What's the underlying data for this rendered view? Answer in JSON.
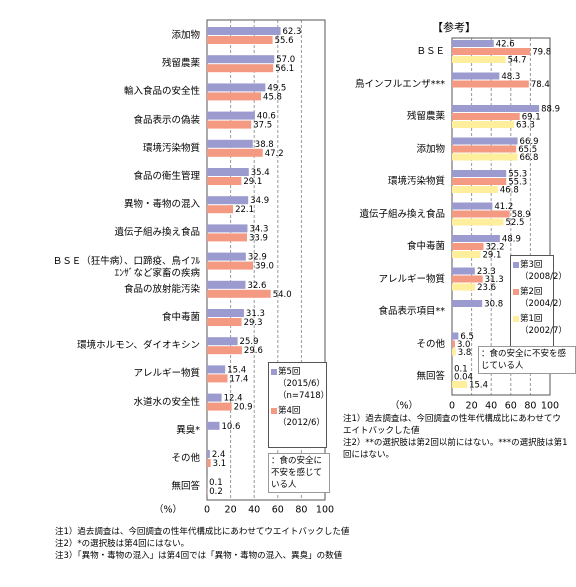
{
  "chart_data": [
    {
      "type": "bar",
      "orientation": "horizontal",
      "categories": [
        "添加物",
        "残留農薬",
        "輸入食品の安全性",
        "食品表示の偽装",
        "環境汚染物質",
        "食品の衛生管理",
        "異物・毒物の混入",
        "遺伝子組み換え食品",
        "ＢＳＥ（狂牛病）、口蹄疫、鳥イﾌﾙｴﾝｻﾞなど家畜の疾病",
        "食品の放射能汚染",
        "食中毒菌",
        "環境ホルモン、ダイオキシン",
        "アレルギー物質",
        "水道水の安全性",
        "異臭*",
        "その他",
        "無回答"
      ],
      "series": [
        {
          "name": "第5回",
          "period": "（2015/6）",
          "n": "（n=7418）",
          "color": "#9b9bd0",
          "values": [
            62.3,
            57.0,
            49.5,
            40.6,
            38.8,
            35.4,
            34.9,
            34.3,
            32.9,
            32.6,
            31.3,
            25.9,
            15.4,
            12.4,
            10.6,
            2.4,
            0.1
          ],
          "value_labels": [
            "62.3",
            "57.0",
            "49.5",
            "40.6",
            "38.8",
            "35.4",
            "34.9",
            "34.3",
            "32.9",
            "32.6",
            "31.3",
            "25.9",
            "15.4",
            "12.4",
            "10.6",
            "2.4",
            "0.1"
          ]
        },
        {
          "name": "第4回",
          "period": "（2012/6）",
          "color": "#f59a82",
          "values": [
            55.6,
            56.1,
            45.8,
            37.5,
            47.2,
            29.1,
            22.1,
            33.9,
            39.0,
            54.0,
            29.3,
            29.6,
            17.4,
            20.9,
            null,
            3.1,
            0.2
          ],
          "value_labels": [
            "55.6",
            "56.1",
            "45.8",
            "37.5",
            "47.2",
            "29.1",
            "22.1",
            "33.9",
            "39.0",
            "54.0",
            "29.3",
            "29.6",
            "17.4",
            "20.9",
            null,
            "3.1",
            "0.2"
          ]
        }
      ],
      "xlim": [
        0,
        100
      ],
      "xticks": [
        0,
        20,
        40,
        60,
        80,
        100
      ],
      "x_label": "（%）",
      "annotation": "：食の安全に不安を感じている人",
      "notes": [
        "注1）過去調査は、今回調査の性年代構成比にあわせてウエイトバックした値",
        "注2）*の選択肢は第4回にはない。",
        "注3）「異物・毒物の混入」は第4回では「異物・毒物の混入、異臭」の数値"
      ]
    },
    {
      "type": "bar",
      "orientation": "horizontal",
      "title": "【参考】",
      "categories": [
        "ＢＳＥ",
        "鳥インフルエンザ***",
        "残留農薬",
        "添加物",
        "環境汚染物質",
        "遺伝子組み換え食品",
        "食中毒菌",
        "アレルギー物質",
        "食品表示項目**",
        "その他",
        "無回答"
      ],
      "series": [
        {
          "name": "第3回",
          "period": "（2008/2）",
          "color": "#9b9bd0",
          "values": [
            42.6,
            48.3,
            88.9,
            66.9,
            55.3,
            41.2,
            48.9,
            23.3,
            30.8,
            6.5,
            0.1
          ],
          "value_labels": [
            "42.6",
            "48.3",
            "88.9",
            "66.9",
            "55.3",
            "41.2",
            "48.9",
            "23.3",
            "30.8",
            "6.5",
            "0.1"
          ]
        },
        {
          "name": "第2回",
          "period": "（2004/2）",
          "color": "#f59a82",
          "values": [
            79.8,
            78.4,
            69.1,
            65.5,
            55.3,
            58.9,
            32.2,
            31.3,
            null,
            3.0,
            0.04
          ],
          "value_labels": [
            "79.8",
            "78.4",
            "69.1",
            "65.5",
            "55.3",
            "58.9",
            "32.2",
            "31.3",
            null,
            "3.0",
            "0.04"
          ]
        },
        {
          "name": "第1回",
          "period": "（2002/7）",
          "color": "#ffee9c",
          "values": [
            54.7,
            null,
            63.3,
            66.8,
            46.8,
            52.5,
            29.1,
            23.6,
            null,
            3.8,
            15.4
          ],
          "value_labels": [
            "54.7",
            null,
            "63.3",
            "66.8",
            "46.8",
            "52.5",
            "29.1",
            "23.6",
            null,
            "3.8",
            "15.4"
          ]
        }
      ],
      "xlim": [
        0,
        100
      ],
      "xticks": [
        0,
        20,
        40,
        60,
        80,
        100
      ],
      "x_label": "（%）",
      "annotation": "：食の安全に不安を感じている人",
      "notes": [
        "注1）過去調査は、今回調査の性年代構成比にあわせてウエイトバックした値",
        "注2）**の選択肢は第2回以前にはない。***の選択肢は第1回にはない。"
      ]
    }
  ]
}
